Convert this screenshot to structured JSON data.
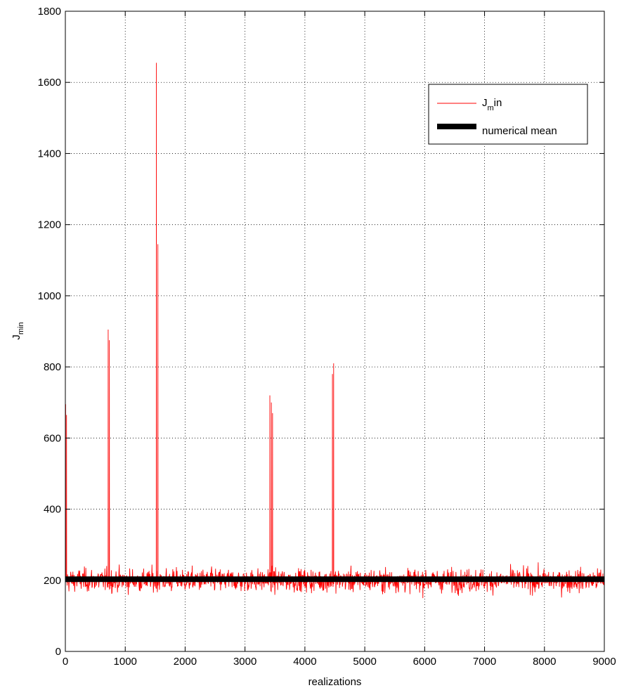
{
  "chart_data": {
    "type": "line",
    "xlabel": "realizations",
    "ylabel": {
      "main": "J",
      "sub": "min"
    },
    "xlim": [
      0,
      9000
    ],
    "ylim": [
      0,
      1800
    ],
    "xticks": [
      "0",
      "1000",
      "2000",
      "3000",
      "4000",
      "5000",
      "6000",
      "7000",
      "8000",
      "9000"
    ],
    "yticks": [
      "0",
      "200",
      "400",
      "600",
      "800",
      "1000",
      "1200",
      "1400",
      "1600",
      "1800"
    ],
    "grid": true,
    "legend_position": "top-right",
    "colors": {
      "jmin": "#ff0000",
      "mean": "#000000"
    },
    "series": [
      {
        "name": {
          "main": "J",
          "sub": "m",
          "suffix": "in"
        },
        "style": "thin red line, ~9000 realizations fluctuating about 200 (band ~150–255) with spikes",
        "baseline": 200,
        "band": [
          150,
          255
        ],
        "spikes": [
          {
            "x": 5,
            "y": 695
          },
          {
            "x": 20,
            "y": 665
          },
          {
            "x": 715,
            "y": 905
          },
          {
            "x": 735,
            "y": 875
          },
          {
            "x": 1520,
            "y": 1655
          },
          {
            "x": 1545,
            "y": 1145
          },
          {
            "x": 3415,
            "y": 720
          },
          {
            "x": 3440,
            "y": 700
          },
          {
            "x": 3460,
            "y": 670
          },
          {
            "x": 4460,
            "y": 780
          },
          {
            "x": 4480,
            "y": 810
          }
        ]
      },
      {
        "name": "numerical mean",
        "style": "thick black line",
        "value": 203
      }
    ]
  }
}
